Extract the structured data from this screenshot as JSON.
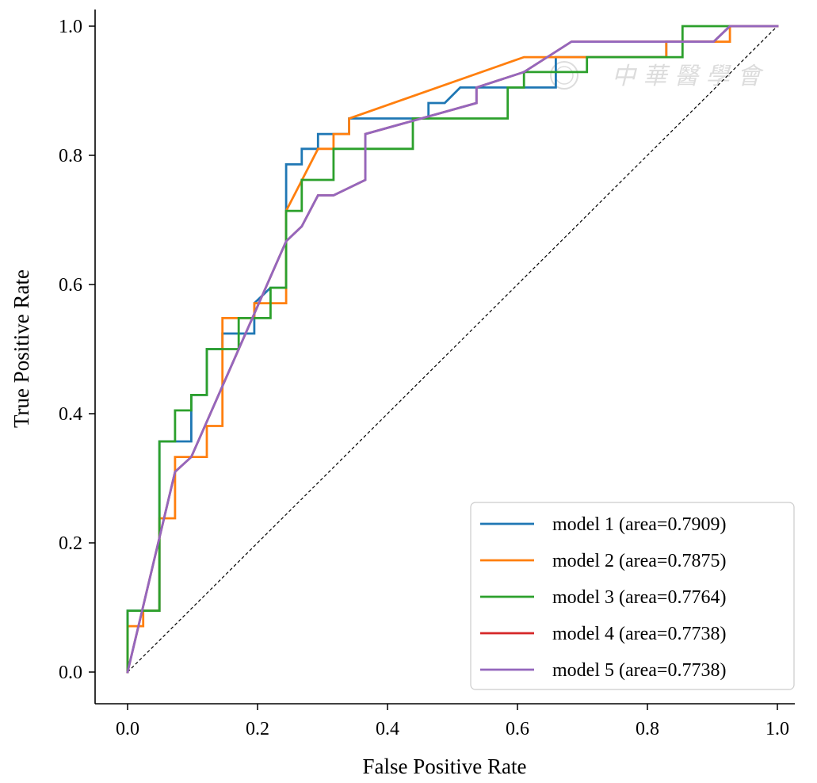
{
  "chart_data": {
    "type": "line",
    "title": "",
    "xlabel": "False Positive Rate",
    "ylabel": "True Positive Rate",
    "xlim": [
      -0.05,
      1.02
    ],
    "ylim": [
      -0.05,
      1.03
    ],
    "xticks": [
      0.0,
      0.2,
      0.4,
      0.6,
      0.8,
      1.0
    ],
    "yticks": [
      0.0,
      0.2,
      0.4,
      0.6,
      0.8,
      1.0
    ],
    "xtick_labels": [
      "0.0",
      "0.2",
      "0.4",
      "0.6",
      "0.8",
      "1.0"
    ],
    "ytick_labels": [
      "0.0",
      "0.2",
      "0.4",
      "0.6",
      "0.8",
      "1.0"
    ],
    "grid": false,
    "legend_position": "bottom-right",
    "diagonal": {
      "x": [
        0,
        1
      ],
      "y": [
        0,
        1
      ],
      "color": "#000000",
      "style": "dashed"
    },
    "series": [
      {
        "name": "model 1 (area=0.7909)",
        "color": "#1f77b4",
        "x": [
          0,
          0,
          0.049,
          0.049,
          0.098,
          0.098,
          0.122,
          0.122,
          0.146,
          0.146,
          0.195,
          0.195,
          0.22,
          0.22,
          0.244,
          0.244,
          0.268,
          0.268,
          0.293,
          0.293,
          0.341,
          0.341,
          0.463,
          0.463,
          0.488,
          0.512,
          0.659,
          0.659,
          0.707,
          0.707,
          0.829,
          0.829,
          0.902,
          0.902,
          0.927,
          1
        ],
        "y": [
          0,
          0.095,
          0.095,
          0.357,
          0.357,
          0.429,
          0.429,
          0.5,
          0.5,
          0.524,
          0.524,
          0.571,
          0.595,
          0.595,
          0.595,
          0.786,
          0.786,
          0.81,
          0.81,
          0.833,
          0.833,
          0.857,
          0.857,
          0.881,
          0.881,
          0.905,
          0.905,
          0.952,
          0.952,
          0.952,
          0.952,
          0.976,
          0.976,
          0.976,
          1,
          1
        ]
      },
      {
        "name": "model 2 (area=0.7875)",
        "color": "#ff7f0e",
        "x": [
          0,
          0,
          0.024,
          0.024,
          0.049,
          0.049,
          0.073,
          0.073,
          0.122,
          0.122,
          0.146,
          0.146,
          0.195,
          0.195,
          0.244,
          0.244,
          0.293,
          0.317,
          0.317,
          0.341,
          0.341,
          0.61,
          0.707,
          0.707,
          0.829,
          0.829,
          0.927,
          0.927,
          1
        ],
        "y": [
          0,
          0.071,
          0.071,
          0.095,
          0.095,
          0.238,
          0.238,
          0.333,
          0.333,
          0.381,
          0.381,
          0.548,
          0.548,
          0.571,
          0.571,
          0.714,
          0.81,
          0.81,
          0.833,
          0.833,
          0.857,
          0.952,
          0.952,
          0.952,
          0.952,
          0.976,
          0.976,
          1,
          1
        ]
      },
      {
        "name": "model 3 (area=0.7764)",
        "color": "#2ca02c",
        "x": [
          0,
          0,
          0.049,
          0.049,
          0.073,
          0.073,
          0.098,
          0.098,
          0.122,
          0.122,
          0.171,
          0.171,
          0.22,
          0.22,
          0.244,
          0.244,
          0.268,
          0.268,
          0.317,
          0.317,
          0.439,
          0.439,
          0.585,
          0.585,
          0.61,
          0.61,
          0.707,
          0.707,
          0.854,
          0.854,
          1
        ],
        "y": [
          0,
          0.095,
          0.095,
          0.357,
          0.357,
          0.405,
          0.405,
          0.429,
          0.429,
          0.5,
          0.5,
          0.548,
          0.548,
          0.595,
          0.595,
          0.714,
          0.714,
          0.762,
          0.762,
          0.81,
          0.81,
          0.857,
          0.857,
          0.905,
          0.905,
          0.929,
          0.929,
          0.952,
          0.952,
          1,
          1
        ]
      },
      {
        "name": "model 4 (area=0.7738)",
        "color": "#d62728",
        "x": [
          0,
          0.073,
          0.098,
          0.244,
          0.268,
          0.293,
          0.317,
          0.366,
          0.366,
          0.537,
          0.537,
          0.61,
          0.683,
          0.902,
          0.927,
          1
        ],
        "y": [
          0,
          0.31,
          0.333,
          0.667,
          0.69,
          0.738,
          0.738,
          0.762,
          0.833,
          0.881,
          0.905,
          0.929,
          0.976,
          0.976,
          1,
          1
        ]
      },
      {
        "name": "model 5 (area=0.7738)",
        "color": "#9467bd",
        "x": [
          0,
          0.073,
          0.098,
          0.244,
          0.268,
          0.293,
          0.317,
          0.366,
          0.366,
          0.537,
          0.537,
          0.61,
          0.683,
          0.902,
          0.927,
          1
        ],
        "y": [
          0,
          0.31,
          0.333,
          0.667,
          0.69,
          0.738,
          0.738,
          0.762,
          0.833,
          0.881,
          0.905,
          0.929,
          0.976,
          0.976,
          1,
          1
        ]
      }
    ]
  }
}
